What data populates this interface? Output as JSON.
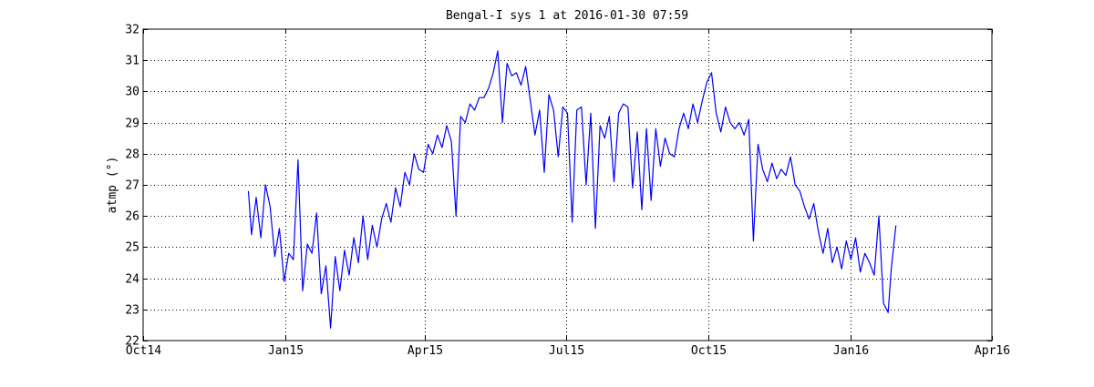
{
  "chart_data": {
    "type": "line",
    "title": "Bengal-I sys 1 at 2016-01-30 07:59",
    "xlabel": "",
    "ylabel": "atmp (°)",
    "x_ticks": [
      {
        "date": "2014-10-01",
        "label": "Oct14"
      },
      {
        "date": "2015-01-01",
        "label": "Jan15"
      },
      {
        "date": "2015-04-01",
        "label": "Apr15"
      },
      {
        "date": "2015-07-01",
        "label": "Jul15"
      },
      {
        "date": "2015-10-01",
        "label": "Oct15"
      },
      {
        "date": "2016-01-01",
        "label": "Jan16"
      },
      {
        "date": "2016-04-01",
        "label": "Apr16"
      }
    ],
    "xlim": [
      "2014-10-01",
      "2016-04-01"
    ],
    "ylim": [
      22,
      32
    ],
    "y_ticks": [
      22,
      23,
      24,
      25,
      26,
      27,
      28,
      29,
      30,
      31,
      32
    ],
    "grid": true,
    "grid_style": "dotted",
    "line_color": "#0000ff",
    "series": [
      {
        "name": "",
        "x": [
          "2014-12-08",
          "2014-12-10",
          "2014-12-13",
          "2014-12-16",
          "2014-12-19",
          "2014-12-22",
          "2014-12-25",
          "2014-12-28",
          "2014-12-31",
          "2015-01-03",
          "2015-01-06",
          "2015-01-09",
          "2015-01-12",
          "2015-01-15",
          "2015-01-18",
          "2015-01-21",
          "2015-01-24",
          "2015-01-27",
          "2015-01-30",
          "2015-02-02",
          "2015-02-05",
          "2015-02-08",
          "2015-02-11",
          "2015-02-14",
          "2015-02-17",
          "2015-02-20",
          "2015-02-23",
          "2015-02-26",
          "2015-03-01",
          "2015-03-04",
          "2015-03-07",
          "2015-03-10",
          "2015-03-13",
          "2015-03-16",
          "2015-03-19",
          "2015-03-22",
          "2015-03-25",
          "2015-03-28",
          "2015-03-31",
          "2015-04-03",
          "2015-04-06",
          "2015-04-09",
          "2015-04-12",
          "2015-04-15",
          "2015-04-18",
          "2015-04-21",
          "2015-04-24",
          "2015-04-27",
          "2015-04-30",
          "2015-05-03",
          "2015-05-06",
          "2015-05-09",
          "2015-05-12",
          "2015-05-15",
          "2015-05-18",
          "2015-05-21",
          "2015-05-24",
          "2015-05-27",
          "2015-05-30",
          "2015-06-02",
          "2015-06-05",
          "2015-06-08",
          "2015-06-11",
          "2015-06-14",
          "2015-06-17",
          "2015-06-20",
          "2015-06-23",
          "2015-06-26",
          "2015-06-29",
          "2015-07-02",
          "2015-07-05",
          "2015-07-08",
          "2015-07-11",
          "2015-07-14",
          "2015-07-17",
          "2015-07-20",
          "2015-07-23",
          "2015-07-26",
          "2015-07-29",
          "2015-08-01",
          "2015-08-04",
          "2015-08-07",
          "2015-08-10",
          "2015-08-13",
          "2015-08-16",
          "2015-08-19",
          "2015-08-22",
          "2015-08-25",
          "2015-08-28",
          "2015-08-31",
          "2015-09-03",
          "2015-09-06",
          "2015-09-09",
          "2015-09-12",
          "2015-09-15",
          "2015-09-18",
          "2015-09-21",
          "2015-09-24",
          "2015-09-27",
          "2015-09-30",
          "2015-10-03",
          "2015-10-06",
          "2015-10-09",
          "2015-10-12",
          "2015-10-15",
          "2015-10-18",
          "2015-10-21",
          "2015-10-24",
          "2015-10-27",
          "2015-10-30",
          "2015-11-02",
          "2015-11-05",
          "2015-11-08",
          "2015-11-11",
          "2015-11-14",
          "2015-11-17",
          "2015-11-20",
          "2015-11-23",
          "2015-11-26",
          "2015-11-29",
          "2015-12-02",
          "2015-12-05",
          "2015-12-08",
          "2015-12-11",
          "2015-12-14",
          "2015-12-17",
          "2015-12-20",
          "2015-12-23",
          "2015-12-26",
          "2015-12-29",
          "2016-01-01",
          "2016-01-04",
          "2016-01-07",
          "2016-01-10",
          "2016-01-13",
          "2016-01-16",
          "2016-01-19",
          "2016-01-22",
          "2016-01-25",
          "2016-01-27",
          "2016-01-30"
        ],
        "y": [
          26.8,
          25.4,
          26.6,
          25.3,
          27.0,
          26.3,
          24.7,
          25.6,
          23.9,
          24.8,
          24.6,
          27.8,
          23.6,
          25.1,
          24.8,
          26.1,
          23.5,
          24.4,
          22.4,
          24.7,
          23.6,
          24.9,
          24.1,
          25.3,
          24.5,
          26.0,
          24.6,
          25.7,
          25.0,
          25.9,
          26.4,
          25.8,
          26.9,
          26.3,
          27.4,
          27.0,
          28.0,
          27.5,
          27.4,
          28.3,
          28.0,
          28.6,
          28.2,
          28.9,
          28.4,
          26.0,
          29.2,
          29.0,
          29.6,
          29.4,
          29.8,
          29.8,
          30.1,
          30.6,
          31.3,
          29.0,
          30.9,
          30.5,
          30.6,
          30.2,
          30.8,
          29.7,
          28.6,
          29.4,
          27.4,
          29.9,
          29.4,
          27.9,
          29.5,
          29.3,
          25.8,
          29.4,
          29.5,
          27.0,
          29.3,
          25.6,
          28.9,
          28.5,
          29.2,
          27.1,
          29.3,
          29.6,
          29.5,
          26.9,
          28.7,
          26.2,
          28.8,
          26.5,
          28.8,
          27.6,
          28.5,
          28.0,
          27.9,
          28.8,
          29.3,
          28.8,
          29.6,
          29.0,
          29.7,
          30.3,
          30.6,
          29.3,
          28.7,
          29.5,
          29.0,
          28.8,
          29.0,
          28.6,
          29.1,
          25.2,
          28.3,
          27.5,
          27.1,
          27.7,
          27.2,
          27.5,
          27.3,
          27.9,
          27.0,
          26.8,
          26.3,
          25.9,
          26.4,
          25.5,
          24.8,
          25.6,
          24.5,
          25.0,
          24.3,
          25.2,
          24.6,
          25.3,
          24.2,
          24.8,
          24.5,
          24.1,
          26.0,
          23.2,
          22.9,
          24.3,
          25.7
        ]
      }
    ]
  }
}
